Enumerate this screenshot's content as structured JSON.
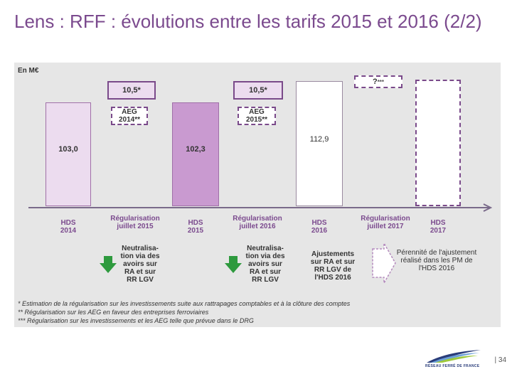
{
  "title": "Lens : RFF : évolutions entre les tarifs 2015 et 2016 (2/2)",
  "unit_label": "En M€",
  "bars": [
    {
      "value_label": "103,0",
      "extra_label": "10,5*",
      "aeg_label": "AEG",
      "aeg_year": "2014",
      "aeg_mark": "**"
    },
    {
      "value_label": "102,3",
      "extra_label": "10,5*",
      "aeg_label": "AEG",
      "aeg_year": "2015",
      "aeg_mark": "**"
    },
    {
      "value_label": "112,9",
      "extra_label": "?",
      "extra_mark": "***"
    }
  ],
  "timeline": [
    {
      "line1": "HDS",
      "line2": "2014"
    },
    {
      "line1": "Régularisation",
      "line2": "juillet 2015"
    },
    {
      "line1": "HDS",
      "line2": "2015"
    },
    {
      "line1": "Régularisation",
      "line2": "juillet 2016"
    },
    {
      "line1": "HDS",
      "line2": "2016"
    },
    {
      "line1": "Régularisation",
      "line2": "juillet 2017"
    },
    {
      "line1": "HDS",
      "line2": "2017"
    }
  ],
  "notes": [
    {
      "lines": [
        "Neutralisa-",
        "tion via des",
        "avoirs sur",
        "RA et sur",
        "RR LGV"
      ]
    },
    {
      "lines": [
        "Neutralisa-",
        "tion via des",
        "avoirs sur",
        "RA et sur",
        "RR LGV"
      ]
    },
    {
      "lines": [
        "Ajustements",
        "sur RA et sur",
        "RR LGV de",
        "l'HDS 2016"
      ]
    },
    {
      "lines": [
        "Pérennité de l'ajustement",
        "réalisé dans les PM de",
        "l'HDS 2016"
      ]
    }
  ],
  "footnotes": [
    "* Estimation de la régularisation sur les investissements suite aux rattrapages comptables et à la clôture des comptes",
    "** Régularisation sur les AEG en faveur des entreprises ferroviaires",
    "*** Régularisation sur les investissements et les AEG telle que prévue dans le DRG"
  ],
  "page_number": "| 34",
  "logo_text": "RÉSEAU FERRÉ DE FRANCE",
  "colors": {
    "title": "#7b4a8e",
    "bar_light": "#ecdcef",
    "bar_mid": "#c99ad0",
    "bar_border": "#a070a8",
    "arrow_green": "#2e9a3e",
    "axis": "#7a6a8a"
  }
}
